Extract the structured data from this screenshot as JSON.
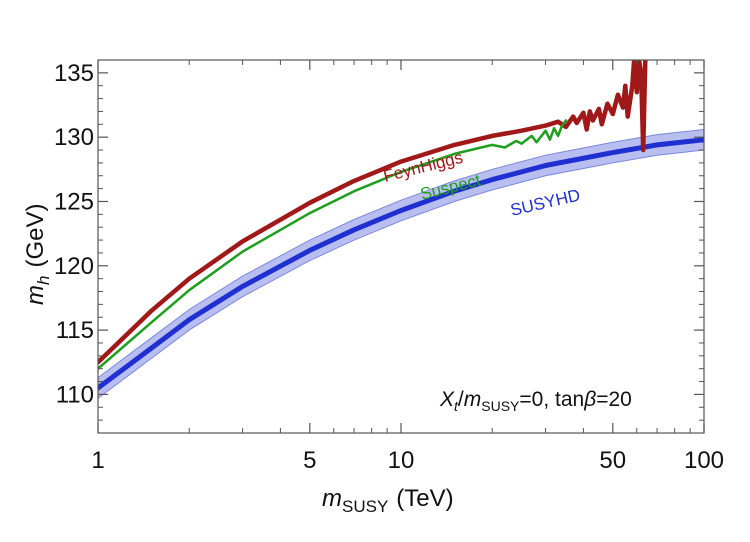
{
  "chart_data": {
    "type": "line",
    "title": "",
    "xscale": "log",
    "xlim": [
      1,
      100
    ],
    "ylim": [
      107,
      136
    ],
    "grid": false,
    "xlabel": {
      "base": "m",
      "sub": "SUSY",
      "unit": "(TeV)"
    },
    "ylabel": {
      "base": "m",
      "sub": "h",
      "unit": "(GeV)"
    },
    "xticks": [
      {
        "value": 1,
        "label": "1"
      },
      {
        "value": 5,
        "label": "5"
      },
      {
        "value": 10,
        "label": "10"
      },
      {
        "value": 50,
        "label": "50"
      },
      {
        "value": 100,
        "label": "100"
      }
    ],
    "xminor": [
      2,
      3,
      4,
      6,
      7,
      8,
      9,
      20,
      30,
      40,
      60,
      70,
      80,
      90
    ],
    "yticks": [
      {
        "value": 110,
        "label": "110"
      },
      {
        "value": 115,
        "label": "115"
      },
      {
        "value": 120,
        "label": "120"
      },
      {
        "value": 125,
        "label": "125"
      },
      {
        "value": 130,
        "label": "130"
      },
      {
        "value": 135,
        "label": "135"
      }
    ],
    "yminor": [
      108,
      109,
      111,
      112,
      113,
      114,
      116,
      117,
      118,
      119,
      121,
      122,
      123,
      124,
      126,
      127,
      128,
      129,
      131,
      132,
      133,
      134
    ],
    "series": [
      {
        "name": "SUSYHD",
        "color": "#1f2fd0",
        "band_color": "#b8bff0",
        "x": [
          1,
          1.5,
          2,
          3,
          5,
          7,
          10,
          15,
          20,
          30,
          50,
          70,
          100
        ],
        "y": [
          110.5,
          113.6,
          115.8,
          118.4,
          121.2,
          122.8,
          124.3,
          125.8,
          126.7,
          127.8,
          128.8,
          129.4,
          129.8
        ],
        "band_halfwidth": 0.8
      },
      {
        "name": "FeynHiggs",
        "color": "#a01818",
        "x": [
          1,
          1.5,
          2,
          3,
          5,
          7,
          10,
          15,
          20,
          25,
          30,
          33,
          35,
          37,
          38,
          40,
          41,
          42,
          43,
          45,
          46,
          48,
          50,
          52,
          54,
          55,
          56,
          58,
          59,
          60,
          61,
          62,
          63,
          64,
          65
        ],
        "y": [
          112.5,
          116.5,
          119.0,
          121.9,
          124.9,
          126.6,
          128.1,
          129.4,
          130.1,
          130.5,
          130.9,
          131.2,
          130.8,
          131.6,
          131.1,
          131.9,
          130.6,
          132.0,
          131.3,
          132.2,
          131.0,
          132.6,
          131.8,
          133.3,
          132.3,
          134.0,
          131.6,
          134.0,
          136.5,
          133.5,
          136.0,
          135.0,
          129.0,
          136.0,
          136.5
        ]
      },
      {
        "name": "Suspect",
        "color": "#1e9e1e",
        "x": [
          1,
          1.5,
          2,
          3,
          5,
          7,
          10,
          15,
          20,
          22,
          24,
          25,
          27,
          28,
          30,
          31,
          32,
          33,
          34,
          35
        ],
        "y": [
          112.0,
          115.6,
          118.1,
          121.1,
          124.1,
          125.8,
          127.3,
          128.7,
          129.4,
          129.2,
          129.7,
          129.5,
          130.1,
          129.6,
          130.5,
          129.8,
          130.7,
          130.1,
          130.9,
          131.3
        ]
      }
    ],
    "labels": [
      {
        "series": "FeynHiggs",
        "text": "FeynHiggs",
        "color": "#a01818"
      },
      {
        "series": "Suspect",
        "text": "Suspect",
        "color": "#1e9e1e"
      },
      {
        "series": "SUSYHD",
        "text": "SUSYHD",
        "color": "#1f2fd0"
      }
    ],
    "annotation": {
      "xt": "X",
      "xt_sub": "t",
      "slash": "/",
      "m": "m",
      "m_sub": "SUSY",
      "rest": "=0, tan",
      "beta": "β",
      "tail": "=20"
    }
  }
}
